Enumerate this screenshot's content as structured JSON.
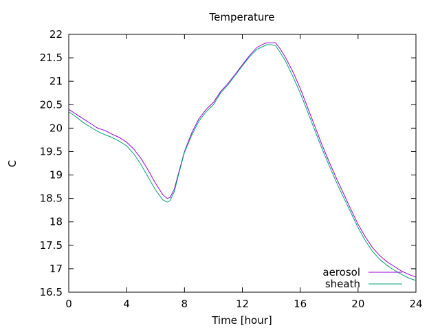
{
  "chart_data": {
    "type": "line",
    "title": "Temperature",
    "xlabel": "Time [hour]",
    "ylabel": "C",
    "xlim": [
      0,
      24
    ],
    "ylim": [
      16.5,
      22
    ],
    "xticks": [
      0,
      4,
      8,
      12,
      16,
      20,
      24
    ],
    "yticks": [
      16.5,
      17,
      17.5,
      18,
      18.5,
      19,
      19.5,
      20,
      20.5,
      21,
      21.5,
      22
    ],
    "grid": false,
    "legend_position": "bottom-right",
    "series": [
      {
        "name": "aerosol",
        "color": "#9400d3",
        "x": [
          0,
          0.5,
          1,
          1.5,
          2,
          2.5,
          3,
          3.5,
          4,
          4.5,
          5,
          5.5,
          6,
          6.5,
          6.8,
          7.0,
          7.3,
          7.6,
          8,
          8.5,
          9,
          9.5,
          10,
          10.5,
          11,
          11.5,
          12,
          12.5,
          13,
          13.5,
          13.7,
          14,
          14.3,
          14.6,
          15,
          15.5,
          16,
          16.5,
          17,
          17.5,
          18,
          18.5,
          19,
          19.5,
          20,
          20.5,
          21,
          21.5,
          22,
          22.5,
          23,
          23.5,
          24
        ],
        "y": [
          20.4,
          20.3,
          20.2,
          20.1,
          20.0,
          19.95,
          19.87,
          19.8,
          19.7,
          19.55,
          19.35,
          19.1,
          18.82,
          18.58,
          18.5,
          18.52,
          18.7,
          19.05,
          19.5,
          19.9,
          20.2,
          20.4,
          20.55,
          20.78,
          20.95,
          21.15,
          21.35,
          21.55,
          21.72,
          21.8,
          21.82,
          21.82,
          21.82,
          21.7,
          21.5,
          21.2,
          20.85,
          20.45,
          20.05,
          19.65,
          19.28,
          18.93,
          18.6,
          18.27,
          17.95,
          17.68,
          17.45,
          17.28,
          17.15,
          17.05,
          16.95,
          16.88,
          16.82
        ]
      },
      {
        "name": "sheath",
        "color": "#009e73",
        "x": [
          0,
          0.5,
          1,
          1.5,
          2,
          2.5,
          3,
          3.5,
          4,
          4.5,
          5,
          5.5,
          6,
          6.5,
          6.8,
          7.0,
          7.3,
          7.6,
          8,
          8.5,
          9,
          9.5,
          10,
          10.5,
          11,
          11.5,
          12,
          12.5,
          13,
          13.5,
          13.7,
          14,
          14.3,
          14.6,
          15,
          15.5,
          16,
          16.5,
          17,
          17.5,
          18,
          18.5,
          19,
          19.5,
          20,
          20.5,
          21,
          21.5,
          22,
          22.5,
          23,
          23.5,
          24
        ],
        "y": [
          20.35,
          20.24,
          20.12,
          20.02,
          19.93,
          19.86,
          19.8,
          19.72,
          19.62,
          19.45,
          19.22,
          18.95,
          18.68,
          18.47,
          18.42,
          18.45,
          18.65,
          19.02,
          19.48,
          19.85,
          20.15,
          20.35,
          20.5,
          20.75,
          20.92,
          21.12,
          21.33,
          21.52,
          21.68,
          21.75,
          21.78,
          21.78,
          21.76,
          21.62,
          21.42,
          21.1,
          20.75,
          20.36,
          19.96,
          19.57,
          19.2,
          18.85,
          18.52,
          18.2,
          17.88,
          17.6,
          17.37,
          17.2,
          17.07,
          16.97,
          16.88,
          16.8,
          16.75
        ]
      }
    ]
  }
}
